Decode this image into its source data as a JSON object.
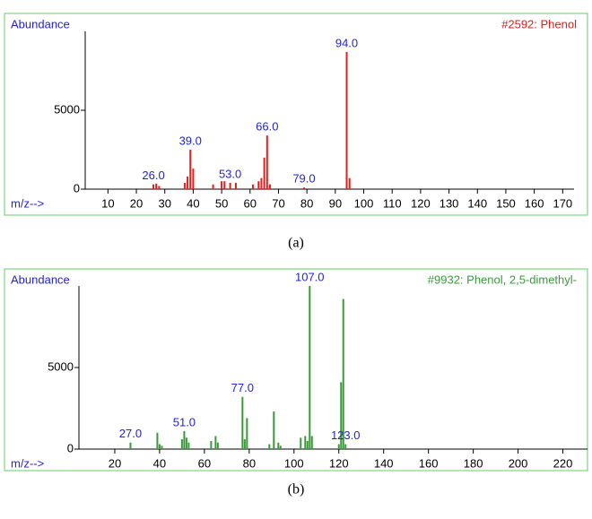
{
  "chart_data": [
    {
      "type": "bar",
      "caption": "(a)",
      "ylabel": "Abundance",
      "xlabel": "m/z-->",
      "series": [
        {
          "name": "#2592: Phenol",
          "color": "#e0201e",
          "x": [
            26,
            27,
            28,
            37,
            38,
            39,
            40,
            47,
            50,
            51,
            53,
            55,
            61,
            63,
            64,
            65,
            66,
            67,
            79,
            94,
            95
          ],
          "values": [
            300,
            350,
            200,
            400,
            800,
            2500,
            1300,
            300,
            500,
            500,
            400,
            400,
            300,
            500,
            700,
            2000,
            3400,
            300,
            100,
            8700,
            700
          ],
          "x_value_labels": [
            "26.0",
            null,
            null,
            null,
            null,
            "39.0",
            null,
            null,
            null,
            null,
            "53.0",
            null,
            null,
            null,
            null,
            null,
            "66.0",
            null,
            "79.0",
            "94.0",
            null
          ]
        }
      ],
      "xlim": [
        2,
        174
      ],
      "xticks": [
        10,
        20,
        30,
        40,
        50,
        60,
        70,
        80,
        90,
        100,
        110,
        120,
        130,
        140,
        150,
        160,
        170
      ],
      "ylim": [
        0,
        10000
      ],
      "yticks": [
        0,
        5000
      ]
    },
    {
      "type": "bar",
      "caption": "(b)",
      "ylabel": "Abundance",
      "xlabel": "m/z-->",
      "series": [
        {
          "name": "#9932: Phenol, 2,5-dimethyl-",
          "color": "#3a9a3a",
          "x": [
            27,
            39,
            40,
            41,
            50,
            51,
            52,
            53,
            63,
            65,
            66,
            77,
            78,
            79,
            89,
            91,
            93,
            94,
            103,
            105,
            106,
            107,
            108,
            120,
            121,
            122,
            123
          ],
          "values": [
            400,
            1000,
            300,
            200,
            600,
            1100,
            700,
            400,
            500,
            800,
            400,
            3200,
            600,
            1900,
            300,
            2300,
            400,
            200,
            700,
            800,
            500,
            9999,
            800,
            300,
            4100,
            9200,
            300
          ],
          "x_value_labels": [
            "27.0",
            null,
            null,
            null,
            null,
            "51.0",
            null,
            null,
            null,
            null,
            null,
            "77.0",
            null,
            null,
            null,
            null,
            null,
            null,
            null,
            null,
            null,
            "107.0",
            null,
            null,
            null,
            null,
            "123.0"
          ]
        }
      ],
      "xlim": [
        4,
        231
      ],
      "xticks": [
        20,
        40,
        60,
        80,
        100,
        120,
        140,
        160,
        180,
        200,
        220
      ],
      "ylim": [
        0,
        10000
      ],
      "yticks": [
        0,
        5000
      ]
    }
  ]
}
